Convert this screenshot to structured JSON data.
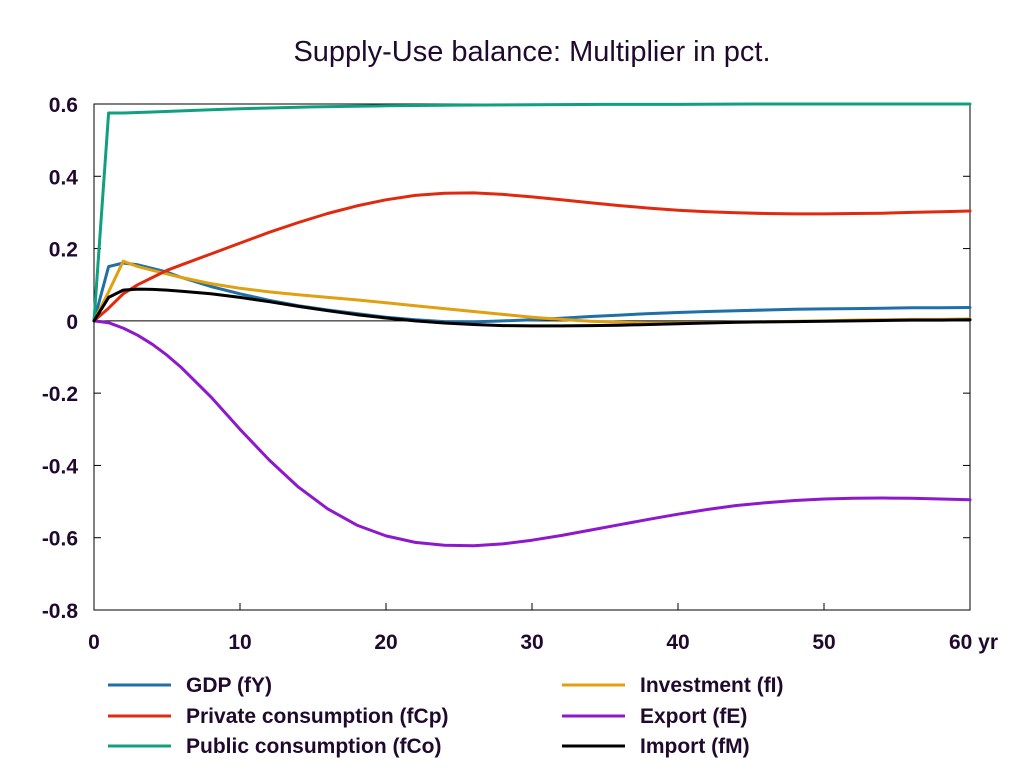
{
  "chart_data": {
    "type": "line",
    "title": "Supply-Use balance: Multiplier in pct.",
    "x_unit_label": "yr",
    "xlim": [
      0,
      60
    ],
    "ylim": [
      -0.8,
      0.6
    ],
    "x_ticks": [
      0,
      10,
      20,
      30,
      40,
      50,
      60
    ],
    "x_tick_labels": [
      "0",
      "10",
      "20",
      "30",
      "40",
      "50",
      "60 yr"
    ],
    "y_ticks": [
      -0.8,
      -0.6,
      -0.4,
      -0.2,
      0,
      0.2,
      0.4,
      0.6
    ],
    "y_tick_labels": [
      "-0.8",
      "-0.6",
      "-0.4",
      "-0.2",
      "0",
      "0.2",
      "0.4",
      "0.6"
    ],
    "zero_line": true,
    "grid": false,
    "legend_position": "bottom",
    "series": [
      {
        "name": "GDP (fY)",
        "color": "#1f6fa8",
        "x": [
          0,
          1,
          2,
          3,
          4,
          5,
          6,
          8,
          10,
          12,
          14,
          16,
          18,
          20,
          22,
          24,
          26,
          28,
          30,
          32,
          34,
          36,
          38,
          40,
          42,
          44,
          46,
          48,
          50,
          52,
          54,
          56,
          58,
          60
        ],
        "y": [
          0,
          0.15,
          0.16,
          0.155,
          0.145,
          0.135,
          0.12,
          0.095,
          0.075,
          0.057,
          0.042,
          0.03,
          0.02,
          0.01,
          0.003,
          -0.002,
          -0.003,
          0.0,
          0.003,
          0.007,
          0.012,
          0.016,
          0.02,
          0.023,
          0.026,
          0.028,
          0.03,
          0.032,
          0.033,
          0.034,
          0.035,
          0.036,
          0.036,
          0.037
        ]
      },
      {
        "name": "Investment (fI)",
        "color": "#e0a010",
        "x": [
          0,
          1,
          2,
          3,
          4,
          5,
          6,
          8,
          10,
          12,
          14,
          16,
          18,
          20,
          22,
          24,
          26,
          28,
          30,
          32,
          34,
          36,
          38,
          40,
          42,
          44,
          46,
          48,
          50,
          52,
          54,
          56,
          58,
          60
        ],
        "y": [
          0,
          0.08,
          0.165,
          0.15,
          0.14,
          0.13,
          0.12,
          0.103,
          0.09,
          0.08,
          0.072,
          0.065,
          0.058,
          0.05,
          0.042,
          0.034,
          0.026,
          0.018,
          0.01,
          0.004,
          -0.001,
          -0.004,
          -0.006,
          -0.006,
          -0.005,
          -0.004,
          -0.003,
          -0.001,
          0.0,
          0.002,
          0.003,
          0.004,
          0.004,
          0.005
        ]
      },
      {
        "name": "Private consumption (fCp)",
        "color": "#e02a10",
        "x": [
          0,
          1,
          2,
          3,
          4,
          5,
          6,
          8,
          10,
          12,
          14,
          16,
          18,
          20,
          22,
          24,
          26,
          28,
          30,
          32,
          34,
          36,
          38,
          40,
          42,
          44,
          46,
          48,
          50,
          52,
          54,
          56,
          58,
          60
        ],
        "y": [
          0,
          0.035,
          0.075,
          0.1,
          0.12,
          0.14,
          0.155,
          0.185,
          0.215,
          0.245,
          0.272,
          0.297,
          0.318,
          0.335,
          0.347,
          0.353,
          0.354,
          0.35,
          0.343,
          0.335,
          0.327,
          0.319,
          0.312,
          0.306,
          0.302,
          0.299,
          0.297,
          0.296,
          0.296,
          0.297,
          0.298,
          0.3,
          0.302,
          0.304
        ]
      },
      {
        "name": "Export (fE)",
        "color": "#8e18cc",
        "x": [
          0,
          1,
          2,
          3,
          4,
          5,
          6,
          8,
          10,
          12,
          14,
          16,
          18,
          20,
          22,
          24,
          26,
          28,
          30,
          32,
          34,
          36,
          38,
          40,
          42,
          44,
          46,
          48,
          50,
          52,
          54,
          56,
          58,
          60
        ],
        "y": [
          0,
          -0.005,
          -0.02,
          -0.04,
          -0.065,
          -0.095,
          -0.13,
          -0.21,
          -0.3,
          -0.385,
          -0.46,
          -0.52,
          -0.565,
          -0.595,
          -0.613,
          -0.621,
          -0.622,
          -0.617,
          -0.607,
          -0.594,
          -0.579,
          -0.564,
          -0.549,
          -0.535,
          -0.522,
          -0.511,
          -0.503,
          -0.497,
          -0.493,
          -0.491,
          -0.49,
          -0.491,
          -0.493,
          -0.495
        ]
      },
      {
        "name": "Public consumption (fCo)",
        "color": "#10a080",
        "x": [
          0,
          1,
          2,
          4,
          6,
          8,
          10,
          15,
          20,
          25,
          30,
          35,
          40,
          45,
          50,
          55,
          60
        ],
        "y": [
          0,
          0.575,
          0.575,
          0.578,
          0.581,
          0.584,
          0.587,
          0.592,
          0.595,
          0.597,
          0.598,
          0.599,
          0.599,
          0.6,
          0.6,
          0.6,
          0.6
        ]
      },
      {
        "name": "Import (fM)",
        "color": "#000000",
        "x": [
          0,
          1,
          2,
          3,
          4,
          5,
          6,
          8,
          10,
          12,
          14,
          16,
          18,
          20,
          22,
          24,
          26,
          28,
          30,
          32,
          34,
          36,
          38,
          40,
          42,
          44,
          46,
          48,
          50,
          52,
          54,
          56,
          58,
          60
        ],
        "y": [
          0,
          0.065,
          0.085,
          0.088,
          0.087,
          0.085,
          0.082,
          0.075,
          0.065,
          0.053,
          0.04,
          0.028,
          0.017,
          0.008,
          0.0,
          -0.006,
          -0.01,
          -0.013,
          -0.014,
          -0.014,
          -0.013,
          -0.012,
          -0.01,
          -0.008,
          -0.006,
          -0.004,
          -0.003,
          -0.002,
          -0.001,
          0.0,
          0.001,
          0.002,
          0.002,
          0.003
        ]
      }
    ],
    "legend": [
      {
        "series": 0,
        "column": 0,
        "row": 0
      },
      {
        "series": 2,
        "column": 0,
        "row": 1
      },
      {
        "series": 4,
        "column": 0,
        "row": 2
      },
      {
        "series": 1,
        "column": 1,
        "row": 0
      },
      {
        "series": 3,
        "column": 1,
        "row": 1
      },
      {
        "series": 5,
        "column": 1,
        "row": 2
      }
    ]
  }
}
